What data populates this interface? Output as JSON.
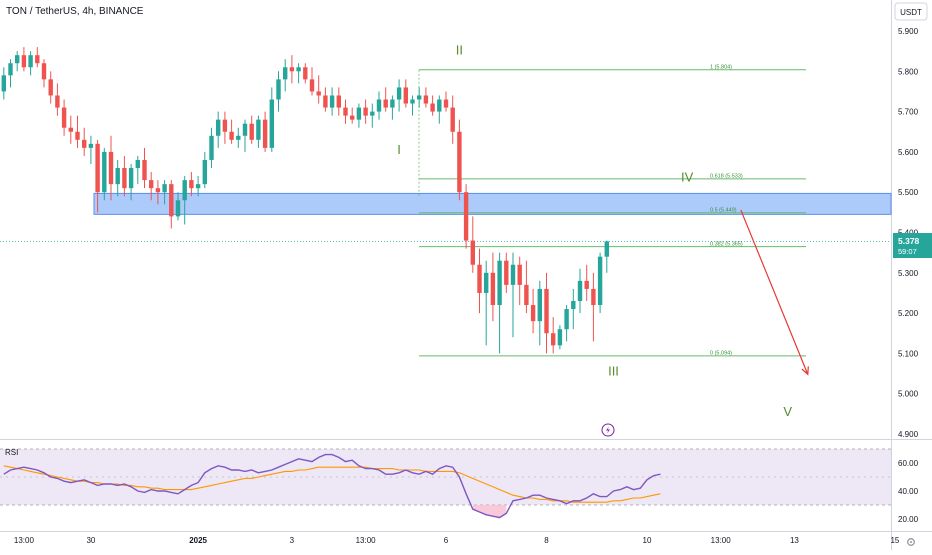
{
  "symbol_title": "TON / TetherUS, 4h, BINANCE",
  "currency_label": "USDT",
  "last_price": {
    "value": "5.378",
    "countdown": "59:07",
    "price": 5.378
  },
  "colors": {
    "up": "#26a69a",
    "down": "#ef5350",
    "fib": "#66bb6a",
    "wave": "#558b2f",
    "zone_fill": "#90b8f8",
    "zone_border": "#5b8def",
    "arrow": "#e53935",
    "rsi_line": "#7e57c2",
    "rsi_ma": "#ff9800",
    "rsi_band": "#ede7f6"
  },
  "chart_data": [
    {
      "type": "candlestick",
      "title": "TON / TetherUS, 4h, BINANCE",
      "y_axis": {
        "ylim": [
          4.88,
          5.96
        ],
        "ticks": [
          5.9,
          5.8,
          5.7,
          5.6,
          5.5,
          5.4,
          5.3,
          5.2,
          5.1,
          5.0,
          4.9
        ],
        "tick_labels": [
          "5.900",
          "5.800",
          "5.700",
          "5.600",
          "5.500",
          "5.400",
          "5.300",
          "5.200",
          "5.100",
          "5.000",
          "4.900"
        ]
      },
      "x_axis": {
        "tick_labels": [
          "13:00",
          "30",
          "2025",
          "3",
          "13:00",
          "6",
          "8",
          "10",
          "13:00",
          "13",
          "15"
        ],
        "tick_candle_index": [
          3,
          13,
          29,
          43,
          54,
          66,
          81,
          96,
          107,
          118,
          133
        ]
      },
      "candles": [
        [
          5.75,
          5.81,
          5.73,
          5.79
        ],
        [
          5.79,
          5.83,
          5.76,
          5.82
        ],
        [
          5.82,
          5.85,
          5.8,
          5.84
        ],
        [
          5.84,
          5.86,
          5.8,
          5.81
        ],
        [
          5.81,
          5.85,
          5.79,
          5.84
        ],
        [
          5.84,
          5.86,
          5.81,
          5.82
        ],
        [
          5.82,
          5.83,
          5.76,
          5.78
        ],
        [
          5.78,
          5.8,
          5.72,
          5.74
        ],
        [
          5.74,
          5.77,
          5.69,
          5.71
        ],
        [
          5.71,
          5.73,
          5.64,
          5.66
        ],
        [
          5.66,
          5.69,
          5.62,
          5.65
        ],
        [
          5.65,
          5.69,
          5.61,
          5.63
        ],
        [
          5.63,
          5.66,
          5.59,
          5.61
        ],
        [
          5.61,
          5.64,
          5.57,
          5.62
        ],
        [
          5.62,
          5.63,
          5.45,
          5.5
        ],
        [
          5.5,
          5.61,
          5.48,
          5.6
        ],
        [
          5.6,
          5.64,
          5.48,
          5.52
        ],
        [
          5.52,
          5.58,
          5.49,
          5.56
        ],
        [
          5.56,
          5.59,
          5.49,
          5.51
        ],
        [
          5.51,
          5.57,
          5.48,
          5.56
        ],
        [
          5.56,
          5.59,
          5.52,
          5.58
        ],
        [
          5.58,
          5.61,
          5.51,
          5.53
        ],
        [
          5.53,
          5.55,
          5.48,
          5.51
        ],
        [
          5.51,
          5.53,
          5.47,
          5.5
        ],
        [
          5.5,
          5.53,
          5.47,
          5.52
        ],
        [
          5.52,
          5.53,
          5.41,
          5.44
        ],
        [
          5.44,
          5.5,
          5.43,
          5.48
        ],
        [
          5.48,
          5.54,
          5.42,
          5.53
        ],
        [
          5.53,
          5.55,
          5.49,
          5.51
        ],
        [
          5.51,
          5.54,
          5.49,
          5.52
        ],
        [
          5.52,
          5.6,
          5.51,
          5.58
        ],
        [
          5.58,
          5.66,
          5.56,
          5.64
        ],
        [
          5.64,
          5.7,
          5.61,
          5.68
        ],
        [
          5.68,
          5.7,
          5.62,
          5.65
        ],
        [
          5.65,
          5.68,
          5.62,
          5.63
        ],
        [
          5.63,
          5.66,
          5.61,
          5.64
        ],
        [
          5.64,
          5.68,
          5.6,
          5.67
        ],
        [
          5.67,
          5.69,
          5.62,
          5.63
        ],
        [
          5.63,
          5.69,
          5.61,
          5.68
        ],
        [
          5.68,
          5.7,
          5.6,
          5.61
        ],
        [
          5.61,
          5.76,
          5.6,
          5.73
        ],
        [
          5.73,
          5.8,
          5.7,
          5.78
        ],
        [
          5.78,
          5.83,
          5.75,
          5.81
        ],
        [
          5.81,
          5.84,
          5.77,
          5.8
        ],
        [
          5.8,
          5.82,
          5.77,
          5.81
        ],
        [
          5.81,
          5.82,
          5.77,
          5.78
        ],
        [
          5.78,
          5.81,
          5.74,
          5.75
        ],
        [
          5.75,
          5.79,
          5.72,
          5.74
        ],
        [
          5.74,
          5.76,
          5.7,
          5.71
        ],
        [
          5.71,
          5.76,
          5.69,
          5.74
        ],
        [
          5.74,
          5.76,
          5.69,
          5.71
        ],
        [
          5.71,
          5.73,
          5.67,
          5.69
        ],
        [
          5.69,
          5.71,
          5.67,
          5.68
        ],
        [
          5.68,
          5.72,
          5.66,
          5.71
        ],
        [
          5.71,
          5.73,
          5.67,
          5.69
        ],
        [
          5.69,
          5.72,
          5.66,
          5.7
        ],
        [
          5.7,
          5.75,
          5.68,
          5.73
        ],
        [
          5.73,
          5.76,
          5.7,
          5.71
        ],
        [
          5.71,
          5.74,
          5.68,
          5.73
        ],
        [
          5.73,
          5.78,
          5.7,
          5.76
        ],
        [
          5.76,
          5.78,
          5.71,
          5.72
        ],
        [
          5.72,
          5.74,
          5.69,
          5.73
        ],
        [
          5.73,
          5.76,
          5.71,
          5.74
        ],
        [
          5.74,
          5.76,
          5.71,
          5.72
        ],
        [
          5.72,
          5.74,
          5.69,
          5.7
        ],
        [
          5.7,
          5.74,
          5.67,
          5.73
        ],
        [
          5.73,
          5.75,
          5.7,
          5.71
        ],
        [
          5.71,
          5.74,
          5.62,
          5.65
        ],
        [
          5.65,
          5.68,
          5.48,
          5.5
        ],
        [
          5.5,
          5.52,
          5.36,
          5.38
        ],
        [
          5.38,
          5.44,
          5.3,
          5.32
        ],
        [
          5.32,
          5.36,
          5.2,
          5.25
        ],
        [
          5.25,
          5.33,
          5.12,
          5.3
        ],
        [
          5.3,
          5.35,
          5.18,
          5.22
        ],
        [
          5.22,
          5.35,
          5.1,
          5.33
        ],
        [
          5.33,
          5.35,
          5.25,
          5.27
        ],
        [
          5.27,
          5.35,
          5.14,
          5.32
        ],
        [
          5.32,
          5.34,
          5.22,
          5.27
        ],
        [
          5.27,
          5.33,
          5.2,
          5.22
        ],
        [
          5.22,
          5.26,
          5.15,
          5.18
        ],
        [
          5.18,
          5.28,
          5.12,
          5.26
        ],
        [
          5.26,
          5.3,
          5.1,
          5.15
        ],
        [
          5.15,
          5.19,
          5.1,
          5.12
        ],
        [
          5.12,
          5.17,
          5.11,
          5.16
        ],
        [
          5.16,
          5.22,
          5.13,
          5.21
        ],
        [
          5.21,
          5.26,
          5.16,
          5.23
        ],
        [
          5.23,
          5.31,
          5.2,
          5.28
        ],
        [
          5.28,
          5.32,
          5.23,
          5.26
        ],
        [
          5.26,
          5.3,
          5.13,
          5.22
        ],
        [
          5.22,
          5.35,
          5.2,
          5.34
        ],
        [
          5.34,
          5.38,
          5.3,
          5.378
        ]
      ],
      "levels": [
        {
          "label": "1 (5.804)",
          "value": 5.804
        },
        {
          "label": "0.618 (5.533)",
          "value": 5.533
        },
        {
          "label": "0.5 (5.449)",
          "value": 5.449
        },
        {
          "label": "0.382 (5.365)",
          "value": 5.365
        },
        {
          "label": "0 (5.094)",
          "value": 5.094
        }
      ],
      "zone": {
        "from": 5.445,
        "to": 5.497
      },
      "waves": [
        {
          "label": "I",
          "candle": 59,
          "value": 5.595
        },
        {
          "label": "II",
          "candle": 68,
          "value": 5.842
        },
        {
          "label": "III",
          "candle": 91,
          "value": 5.045
        },
        {
          "label": "IV",
          "candle": 102,
          "value": 5.526
        },
        {
          "label": "V",
          "candle": 117,
          "value": 4.945
        }
      ],
      "projection_arrow": {
        "from": {
          "candle": 110,
          "value": 5.456
        },
        "to": {
          "candle": 120,
          "value": 5.048
        }
      }
    },
    {
      "type": "line",
      "title": "RSI",
      "y_axis": {
        "ylim": [
          15,
          75
        ],
        "ticks": [
          60,
          40,
          20
        ],
        "tick_labels": [
          "60.00",
          "40.00",
          "20.00"
        ]
      },
      "bands": {
        "upper": 70,
        "middle": 50,
        "lower": 30
      },
      "series": [
        {
          "values": [
            52,
            55,
            56,
            57,
            56,
            55,
            53,
            50,
            49,
            47,
            46,
            47,
            48,
            46,
            44,
            45,
            45,
            44,
            45,
            43,
            40,
            39,
            41,
            40,
            40,
            39,
            38,
            41,
            44,
            46,
            53,
            56,
            58,
            57,
            55,
            55,
            54,
            55,
            53,
            54,
            55,
            57,
            59,
            61,
            63,
            62,
            61,
            64,
            66,
            66,
            64,
            61,
            62,
            58,
            56,
            56,
            55,
            52,
            52,
            53,
            55,
            53,
            52,
            54,
            52,
            56,
            58,
            57,
            50,
            38,
            27,
            25,
            23,
            22,
            21,
            24,
            33,
            34,
            35,
            37,
            37,
            35,
            34,
            33,
            31,
            33,
            33,
            35,
            38,
            36,
            36,
            40,
            41,
            43,
            41,
            42,
            48,
            51,
            52
          ]
        },
        {
          "values": [
            58,
            57,
            56,
            55,
            54,
            53,
            52,
            51,
            50,
            49,
            48,
            47,
            47,
            46,
            46,
            45,
            45,
            45,
            44,
            44,
            43,
            43,
            42,
            42,
            41,
            41,
            41,
            41,
            41,
            42,
            43,
            44,
            45,
            46,
            47,
            48,
            49,
            49,
            50,
            51,
            52,
            53,
            54,
            54,
            55,
            55,
            56,
            57,
            57,
            57,
            57,
            57,
            57,
            57,
            57,
            56,
            56,
            56,
            56,
            55,
            55,
            55,
            55,
            54,
            54,
            54,
            54,
            54,
            53,
            51,
            49,
            47,
            45,
            43,
            41,
            39,
            37,
            36,
            35,
            35,
            34,
            34,
            33,
            33,
            33,
            32,
            32,
            32,
            32,
            32,
            32,
            33,
            33,
            34,
            35,
            35,
            36,
            37,
            38
          ]
        }
      ]
    }
  ]
}
